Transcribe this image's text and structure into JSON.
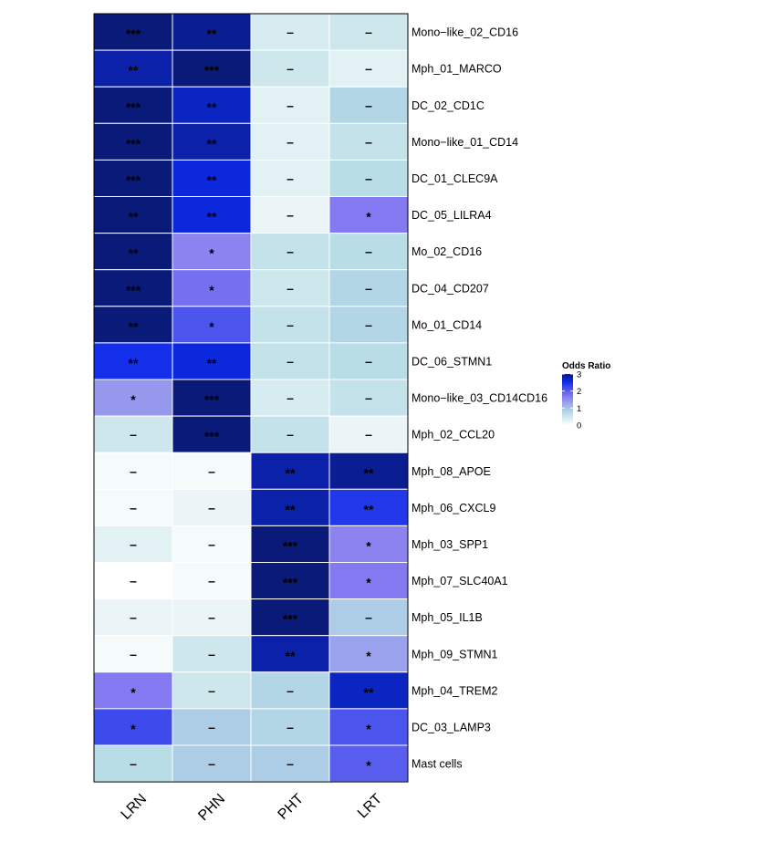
{
  "chart_data": {
    "type": "heatmap",
    "columns": [
      "LRN",
      "PHN",
      "PHT",
      "LRT"
    ],
    "rows": [
      "Mono−like_02_CD16",
      "Mph_01_MARCO",
      "DC_02_CD1C",
      "Mono−like_01_CD14",
      "DC_01_CLEC9A",
      "DC_05_LILRA4",
      "Mo_02_CD16",
      "DC_04_CD207",
      "Mo_01_CD14",
      "DC_06_STMN1",
      "Mono−like_03_CD14CD16",
      "Mph_02_CCL20",
      "Mph_08_APOE",
      "Mph_06_CXCL9",
      "Mph_03_SPP1",
      "Mph_07_SLC40A1",
      "Mph_05_IL1B",
      "Mph_09_STMN1",
      "Mph_04_TREM2",
      "DC_03_LAMP3",
      "Mast cells"
    ],
    "values": [
      [
        3.0,
        2.9,
        0.4,
        0.5
      ],
      [
        2.8,
        3.0,
        0.5,
        0.3
      ],
      [
        3.0,
        2.7,
        0.3,
        0.8
      ],
      [
        3.0,
        2.8,
        0.3,
        0.6
      ],
      [
        3.0,
        2.6,
        0.3,
        0.7
      ],
      [
        3.0,
        2.6,
        0.2,
        1.7
      ],
      [
        3.0,
        1.6,
        0.6,
        0.7
      ],
      [
        3.0,
        1.8,
        0.5,
        0.8
      ],
      [
        3.0,
        2.1,
        0.6,
        0.8
      ],
      [
        2.5,
        2.6,
        0.6,
        0.7
      ],
      [
        1.4,
        3.0,
        0.4,
        0.6
      ],
      [
        0.5,
        3.0,
        0.6,
        0.2
      ],
      [
        0.1,
        0.1,
        2.8,
        2.9
      ],
      [
        0.1,
        0.2,
        2.8,
        2.4
      ],
      [
        0.3,
        0.1,
        3.0,
        1.6
      ],
      [
        0.0,
        0.1,
        3.0,
        1.7
      ],
      [
        0.2,
        0.2,
        3.0,
        0.9
      ],
      [
        0.1,
        0.5,
        2.8,
        1.3
      ],
      [
        1.7,
        0.5,
        0.8,
        2.7
      ],
      [
        2.2,
        0.9,
        0.8,
        2.1
      ],
      [
        0.7,
        0.9,
        0.9,
        2.0
      ]
    ],
    "labels": [
      [
        "***",
        "**",
        "–",
        "–"
      ],
      [
        "**",
        "***",
        "–",
        "–"
      ],
      [
        "***",
        "**",
        "–",
        "–"
      ],
      [
        "***",
        "**",
        "–",
        "–"
      ],
      [
        "***",
        "**",
        "–",
        "–"
      ],
      [
        "**",
        "**",
        "–",
        "*"
      ],
      [
        "**",
        "*",
        "–",
        "–"
      ],
      [
        "***",
        "*",
        "–",
        "–"
      ],
      [
        "**",
        "*",
        "–",
        "–"
      ],
      [
        "**",
        "**",
        "–",
        "–"
      ],
      [
        "*",
        "***",
        "–",
        "–"
      ],
      [
        "–",
        "***",
        "–",
        "–"
      ],
      [
        "–",
        "–",
        "**",
        "**"
      ],
      [
        "–",
        "–",
        "**",
        "**"
      ],
      [
        "–",
        "–",
        "***",
        "*"
      ],
      [
        "–",
        "–",
        "***",
        "*"
      ],
      [
        "–",
        "–",
        "***",
        "–"
      ],
      [
        "–",
        "–",
        "**",
        "*"
      ],
      [
        "*",
        "–",
        "–",
        "**"
      ],
      [
        "*",
        "–",
        "–",
        "*"
      ],
      [
        "–",
        "–",
        "–",
        "*"
      ]
    ],
    "legend": {
      "title": "Odds Ratio",
      "ticks": [
        3,
        2,
        1,
        0
      ],
      "range": [
        0,
        3
      ],
      "placement": "right"
    },
    "colorscale": {
      "low": "#ffffff",
      "low_mid": "#b4dbe4",
      "mid": "#8a7ef2",
      "high_mid": "#0c2ae8",
      "high": "#0a1a78"
    },
    "grid": true
  }
}
